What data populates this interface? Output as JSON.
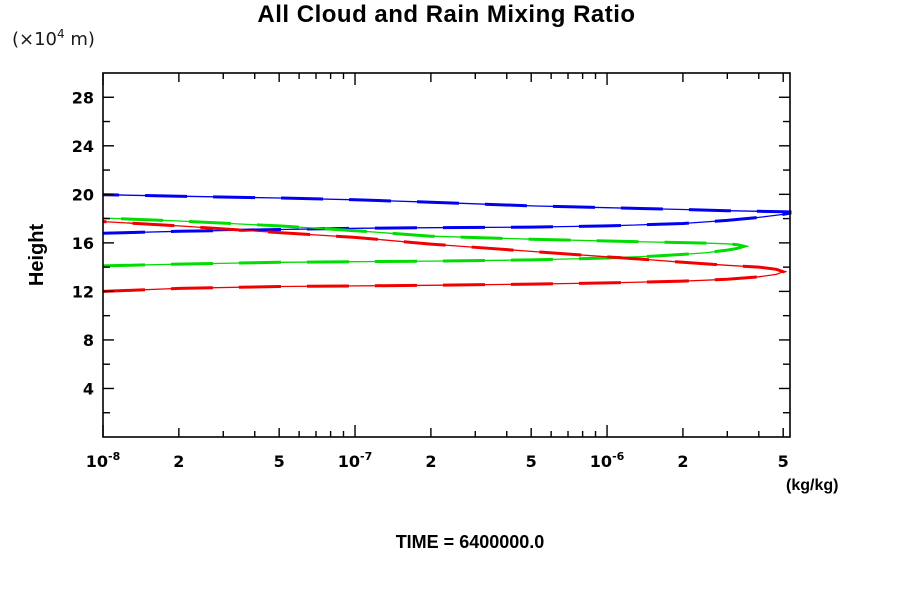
{
  "title": "All Cloud and Rain Mixing Ratio",
  "axes": {
    "y_units": {
      "prefix": "(×10",
      "exp": "4",
      "suffix": " m)"
    },
    "y_axis_label": "Height",
    "x_units_label": "(kg/kg)"
  },
  "footer": {
    "time_label": "TIME = 6400000.0"
  },
  "chart_data": {
    "type": "line",
    "title": "All Cloud and Rain Mixing Ratio",
    "xlabel": "(kg/kg)",
    "ylabel": "Height",
    "y_units": "x10^4 m",
    "x_scale": "log",
    "xlim": [
      1e-08,
      5.32e-06
    ],
    "ylim": [
      0,
      30
    ],
    "grid": false,
    "legend": "none",
    "annotation": "TIME = 6400000.0",
    "x_ticks_major": [
      {
        "value": 1e-08,
        "label": "10^-8"
      },
      {
        "value": 1e-07,
        "label": "10^-7"
      },
      {
        "value": 1e-06,
        "label": "10^-6"
      }
    ],
    "x_ticks_labeled": [
      {
        "value": 2e-08,
        "label": "2"
      },
      {
        "value": 5e-08,
        "label": "5"
      },
      {
        "value": 2e-07,
        "label": "2"
      },
      {
        "value": 5e-07,
        "label": "5"
      },
      {
        "value": 2e-06,
        "label": "2"
      },
      {
        "value": 5e-06,
        "label": "5"
      }
    ],
    "x_ticks_minor": [
      3e-08,
      4e-08,
      6e-08,
      7e-08,
      8e-08,
      9e-08,
      3e-07,
      4e-07,
      6e-07,
      7e-07,
      8e-07,
      9e-07,
      3e-06,
      4e-06
    ],
    "y_ticks_major": [
      {
        "value": 4,
        "label": "4"
      },
      {
        "value": 8,
        "label": "8"
      },
      {
        "value": 12,
        "label": "12"
      },
      {
        "value": 16,
        "label": "16"
      },
      {
        "value": 20,
        "label": "20"
      },
      {
        "value": 24,
        "label": "24"
      },
      {
        "value": 28,
        "label": "28"
      }
    ],
    "y_ticks_minor": [
      2,
      6,
      10,
      14,
      18,
      22,
      26
    ],
    "series": [
      {
        "name": "blue-profile",
        "color": "#0000f2",
        "points_value_height": [
          [
            1e-08,
            16.8
          ],
          [
            2e-08,
            16.95
          ],
          [
            5e-08,
            17.1
          ],
          [
            1e-07,
            17.2
          ],
          [
            2e-07,
            17.25
          ],
          [
            5e-07,
            17.3
          ],
          [
            1e-06,
            17.4
          ],
          [
            2e-06,
            17.6
          ],
          [
            3e-06,
            17.85
          ],
          [
            4e-06,
            18.1
          ],
          [
            5e-06,
            18.35
          ],
          [
            5.32e-06,
            18.45
          ],
          [
            5.32e-06,
            18.55
          ],
          [
            5e-06,
            18.57
          ],
          [
            4e-06,
            18.6
          ],
          [
            3e-06,
            18.65
          ],
          [
            2e-06,
            18.75
          ],
          [
            1e-06,
            18.9
          ],
          [
            5e-07,
            19.05
          ],
          [
            2e-07,
            19.35
          ],
          [
            1e-07,
            19.55
          ],
          [
            5e-08,
            19.7
          ],
          [
            2e-08,
            19.85
          ],
          [
            1e-08,
            19.97
          ]
        ]
      },
      {
        "name": "green-profile",
        "color": "#00dd00",
        "points_value_height": [
          [
            1e-08,
            14.1
          ],
          [
            2e-08,
            14.25
          ],
          [
            5e-08,
            14.4
          ],
          [
            1e-07,
            14.45
          ],
          [
            2e-07,
            14.5
          ],
          [
            5e-07,
            14.6
          ],
          [
            1e-06,
            14.75
          ],
          [
            1.5e-06,
            14.9
          ],
          [
            2e-06,
            15.05
          ],
          [
            2.5e-06,
            15.2
          ],
          [
            3e-06,
            15.4
          ],
          [
            3.3e-06,
            15.55
          ],
          [
            3.5e-06,
            15.72
          ],
          [
            3.3e-06,
            15.85
          ],
          [
            3e-06,
            15.92
          ],
          [
            2.5e-06,
            15.97
          ],
          [
            2e-06,
            16.02
          ],
          [
            1.5e-06,
            16.07
          ],
          [
            1e-06,
            16.15
          ],
          [
            5e-07,
            16.3
          ],
          [
            2e-07,
            16.55
          ],
          [
            1e-07,
            17.0
          ],
          [
            5e-08,
            17.4
          ],
          [
            2e-08,
            17.8
          ],
          [
            1e-08,
            18.05
          ]
        ]
      },
      {
        "name": "red-profile",
        "color": "#f20000",
        "points_value_height": [
          [
            1e-08,
            12.0
          ],
          [
            2e-08,
            12.25
          ],
          [
            5e-08,
            12.4
          ],
          [
            1e-07,
            12.45
          ],
          [
            2e-07,
            12.5
          ],
          [
            5e-07,
            12.6
          ],
          [
            1e-06,
            12.7
          ],
          [
            2e-06,
            12.85
          ],
          [
            3e-06,
            13.0
          ],
          [
            4e-06,
            13.2
          ],
          [
            4.7e-06,
            13.4
          ],
          [
            5e-06,
            13.62
          ],
          [
            4.7e-06,
            13.82
          ],
          [
            4e-06,
            14.0
          ],
          [
            3e-06,
            14.15
          ],
          [
            2e-06,
            14.4
          ],
          [
            1.5e-06,
            14.6
          ],
          [
            1e-06,
            14.85
          ],
          [
            5e-07,
            15.3
          ],
          [
            2e-07,
            15.9
          ],
          [
            1e-07,
            16.45
          ],
          [
            5e-08,
            16.85
          ],
          [
            2e-08,
            17.4
          ],
          [
            1e-08,
            17.75
          ]
        ]
      }
    ]
  }
}
